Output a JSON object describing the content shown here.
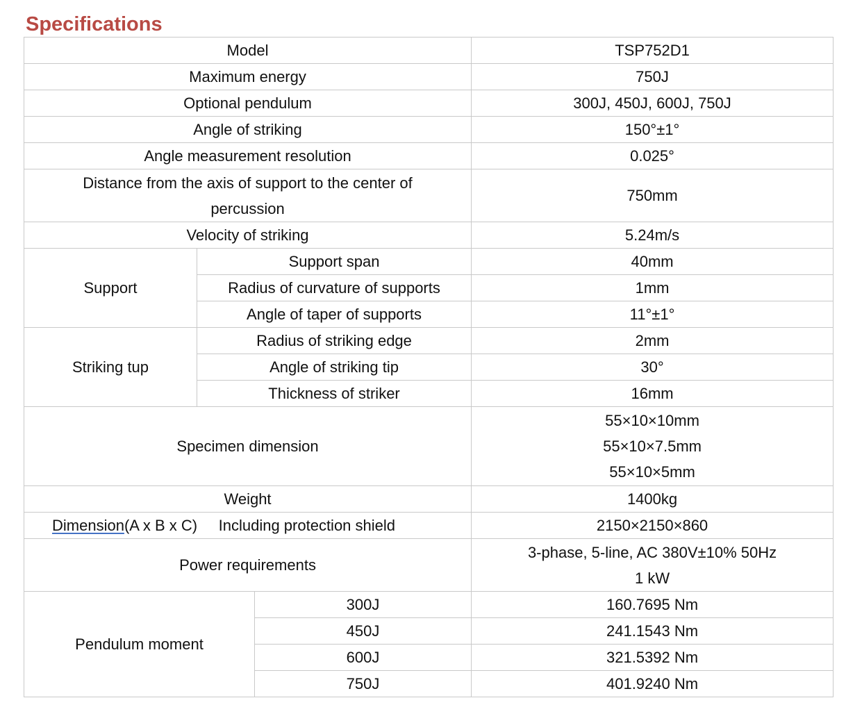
{
  "title": "Specifications",
  "model": {
    "label": "Model",
    "value": "TSP752D1"
  },
  "max_energy": {
    "label": "Maximum energy",
    "value": "750J"
  },
  "optional_pendulum": {
    "label": "Optional pendulum",
    "value": "300J, 450J, 600J, 750J"
  },
  "angle_striking": {
    "label": "Angle of striking",
    "value": "150°±1°"
  },
  "angle_resolution": {
    "label": "Angle measurement resolution",
    "value": "0.025°"
  },
  "distance": {
    "label_line1": "Distance from the axis of support to the center of",
    "label_line2": "percussion",
    "value": "750mm"
  },
  "velocity": {
    "label": "Velocity of striking",
    "value": "5.24m/s"
  },
  "support": {
    "label": "Support",
    "rows": [
      {
        "label": "Support span",
        "value": "40mm"
      },
      {
        "label": "Radius of curvature of supports",
        "value": "1mm"
      },
      {
        "label": "Angle of taper of supports",
        "value": "11°±1°"
      }
    ]
  },
  "striking_tup": {
    "label": "Striking tup",
    "rows": [
      {
        "label": "Radius of striking edge",
        "value": "2mm"
      },
      {
        "label": "Angle of striking tip",
        "value": "30°"
      },
      {
        "label": "Thickness of striker",
        "value": "16mm"
      }
    ]
  },
  "specimen": {
    "label": "Specimen dimension",
    "values": [
      "55×10×10mm",
      "55×10×7.5mm",
      "55×10×5mm"
    ]
  },
  "weight": {
    "label": "Weight",
    "value": "1400kg"
  },
  "dimension": {
    "label_main": "Dimension",
    "label_suffix": "(A x B x C)",
    "label_extra": "Including protection shield",
    "value": "2150×2150×860"
  },
  "power": {
    "label": "Power requirements",
    "values": [
      "3-phase, 5-line, AC 380V±10% 50Hz",
      "1 kW"
    ]
  },
  "pendulum_moment": {
    "label": "Pendulum moment",
    "rows": [
      {
        "label": "300J",
        "value": "160.7695 Nm"
      },
      {
        "label": "450J",
        "value": "241.1543 Nm"
      },
      {
        "label": "600J",
        "value": "321.5392 Nm"
      },
      {
        "label": "750J",
        "value": "401.9240 Nm"
      }
    ]
  }
}
